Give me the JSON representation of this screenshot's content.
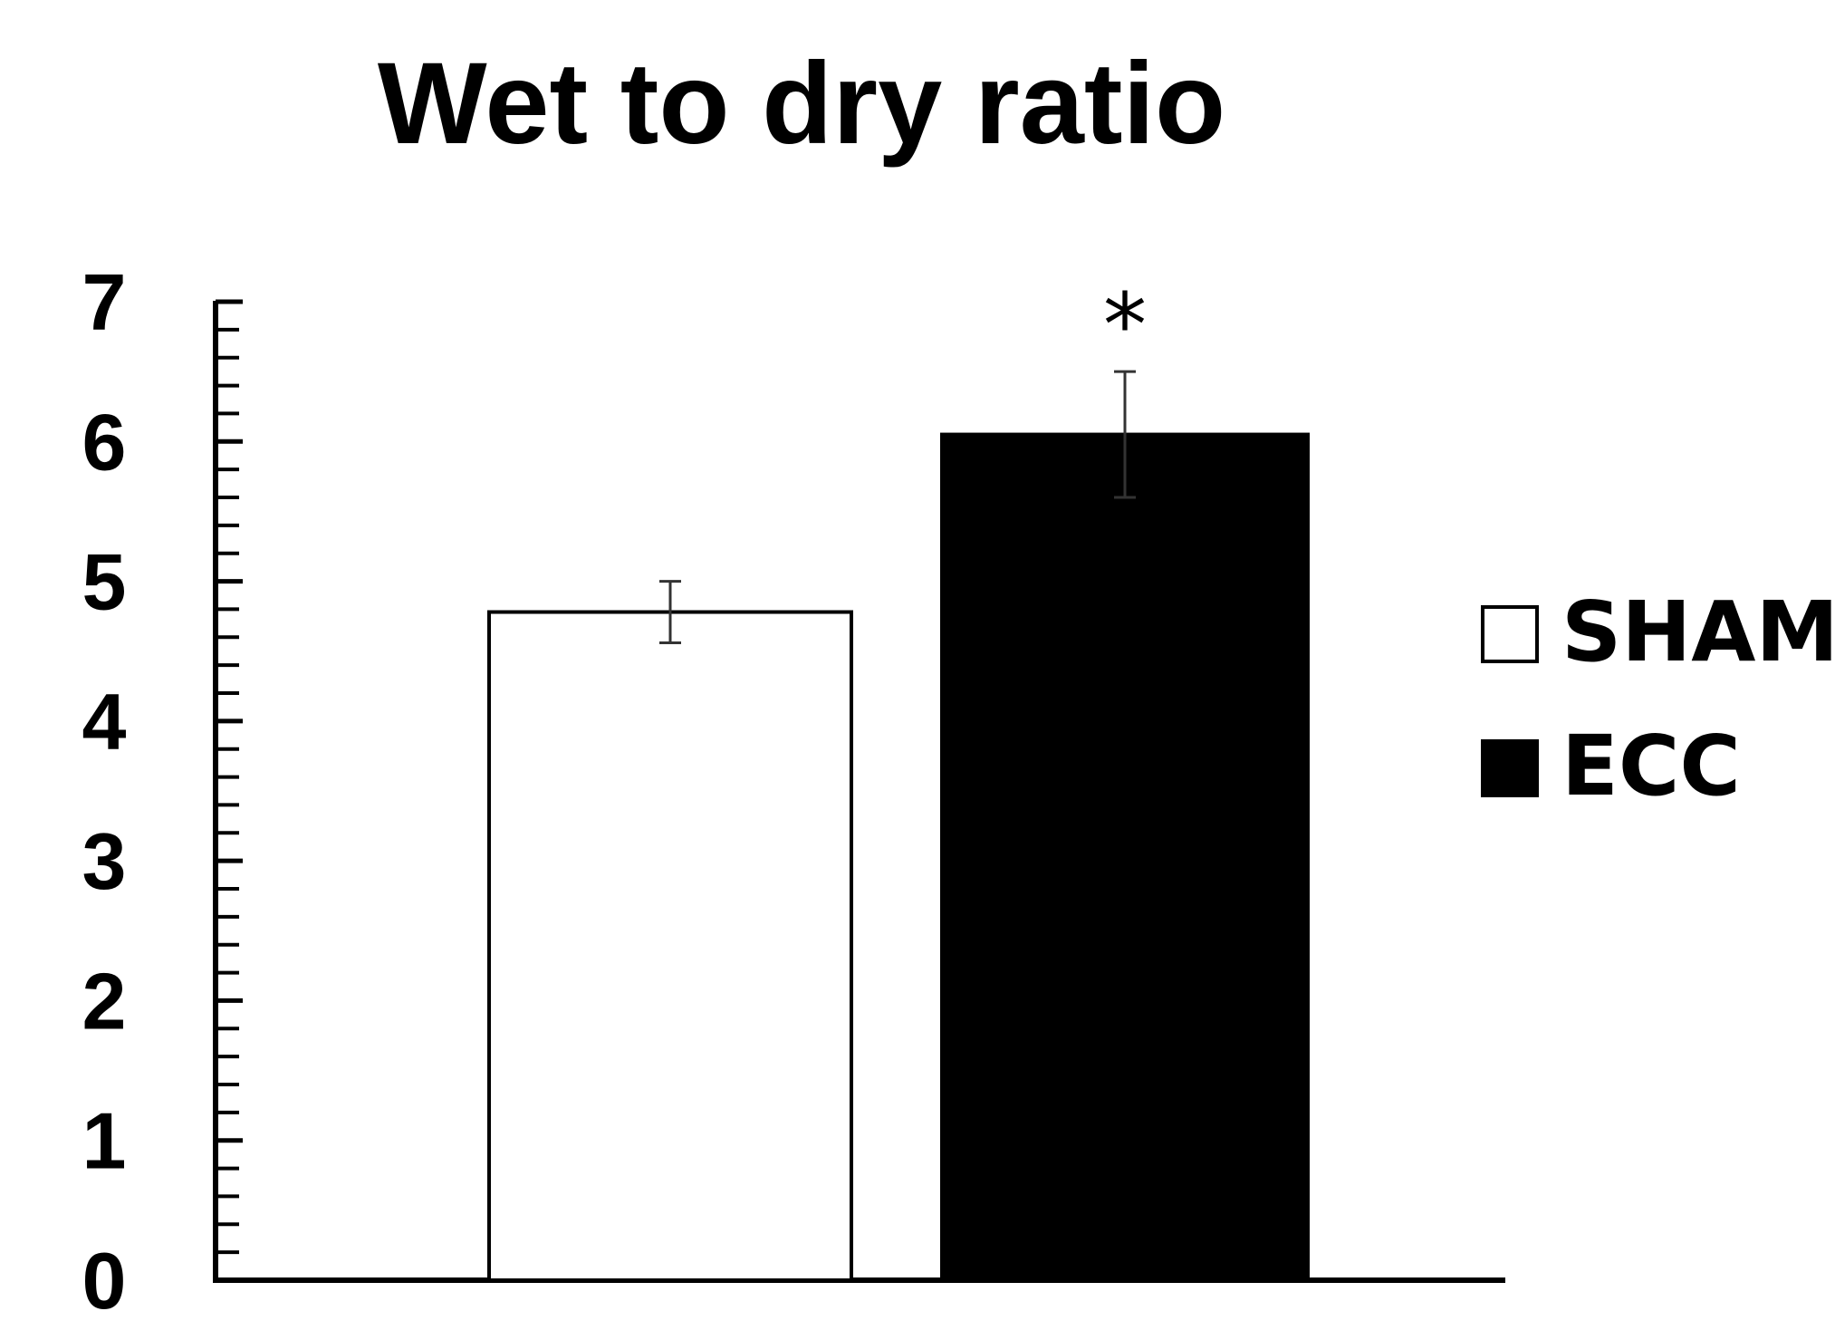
{
  "chart_data": {
    "type": "bar",
    "title": "Wet to dry ratio",
    "xlabel": "",
    "ylabel": "",
    "ylim": [
      0,
      7
    ],
    "yticks": [
      "0",
      "1",
      "2",
      "3",
      "4",
      "5",
      "6",
      "7"
    ],
    "minor_tick_step": 0.2,
    "grid": false,
    "legend_position": "right",
    "series": [
      {
        "name": "SHAM",
        "value": 4.78,
        "error": 0.22,
        "color": "#ffffff",
        "edge": "#000000",
        "annotation": ""
      },
      {
        "name": "ECC",
        "value": 6.05,
        "error": 0.45,
        "color": "#000000",
        "edge": "#000000",
        "annotation": "*"
      }
    ]
  }
}
